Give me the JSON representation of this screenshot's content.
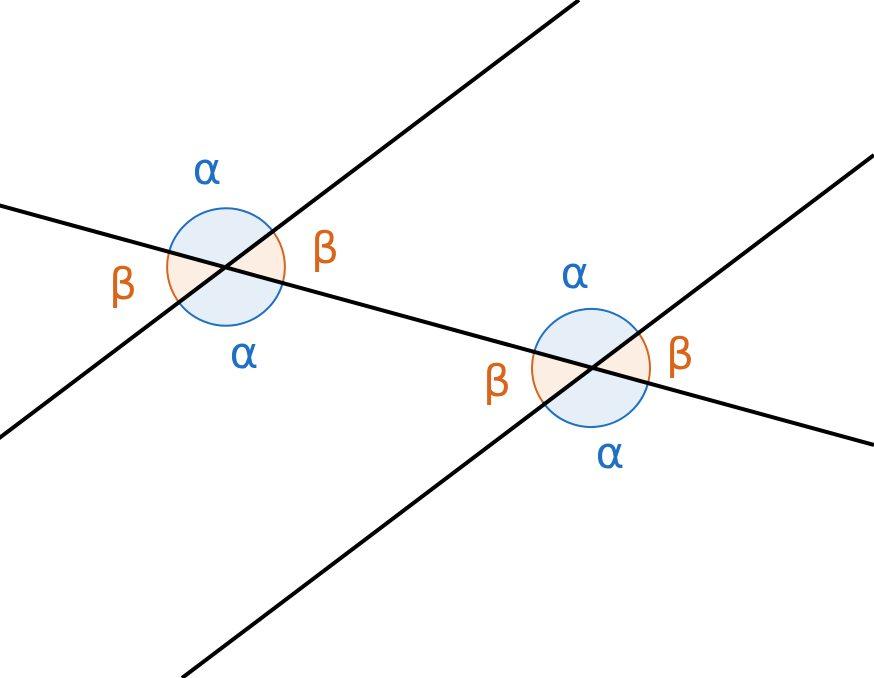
{
  "diagram": {
    "title": "",
    "labels": {
      "alpha": "α",
      "beta": "β"
    },
    "colors": {
      "line": "#000000",
      "alpha": "#1f6fc4",
      "alpha_fill": "#e6eef8",
      "beta": "#d9651a",
      "beta_fill": "#fdeee4"
    }
  }
}
